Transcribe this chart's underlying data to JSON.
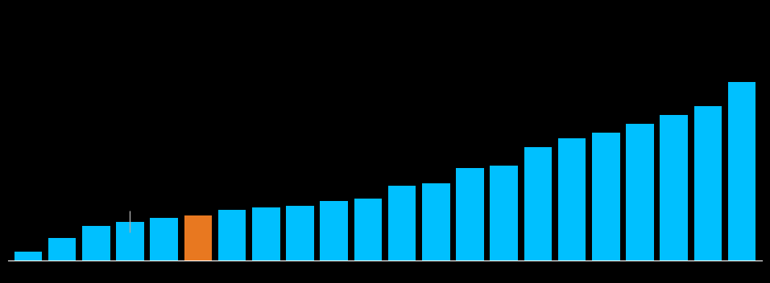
{
  "values": [
    1.5,
    3.8,
    5.8,
    6.5,
    7.2,
    7.5,
    8.5,
    8.9,
    9.2,
    10.0,
    10.4,
    12.5,
    13.0,
    15.5,
    16.0,
    19.0,
    20.5,
    21.5,
    23.0,
    24.5,
    26.0,
    30.0
  ],
  "orange_index": 5,
  "error_bar_index": 3,
  "error_bar_value": 1.8,
  "bar_color": "#00C0FF",
  "orange_color": "#E87820",
  "error_color": "#AAAAAA",
  "background_color": "#000000",
  "ylim": [
    0,
    40
  ],
  "bar_width": 0.82,
  "spine_color": "#FFFFFF",
  "spine_linewidth": 0.8
}
